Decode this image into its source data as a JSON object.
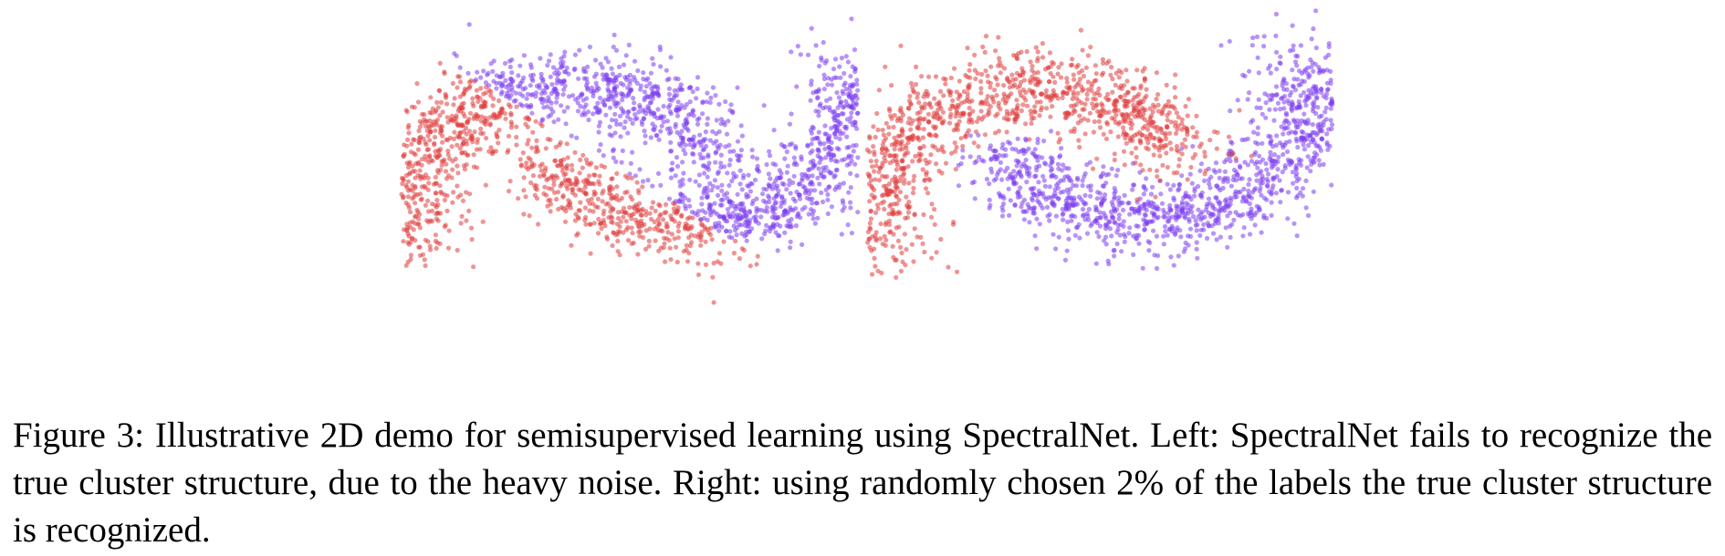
{
  "colors": {
    "cluster_a": "#e03c3c",
    "cluster_b": "#7b3cf0"
  },
  "chart_data": [
    {
      "type": "scatter",
      "panel": "left",
      "shape": "two interleaving half-moons (noisy)",
      "grid": false,
      "axes_visible": false,
      "series": [
        {
          "color": "red",
          "points": 1200
        },
        {
          "color": "purple",
          "points": 1200
        }
      ]
    },
    {
      "type": "scatter",
      "panel": "right",
      "shape": "two interleaving half-moons (noisy)",
      "grid": false,
      "axes_visible": false,
      "series": [
        {
          "color": "red",
          "points": 1200
        },
        {
          "color": "purple",
          "points": 1200
        }
      ]
    }
  ],
  "caption": {
    "label": "Figure 3:",
    "text": "Illustrative 2D demo for semisupervised learning using SpectralNet.  Left:  SpectralNet fails to recognize the true cluster structure, due to the heavy noise.  Right: using randomly chosen 2% of the labels the true cluster structure is recognized."
  }
}
